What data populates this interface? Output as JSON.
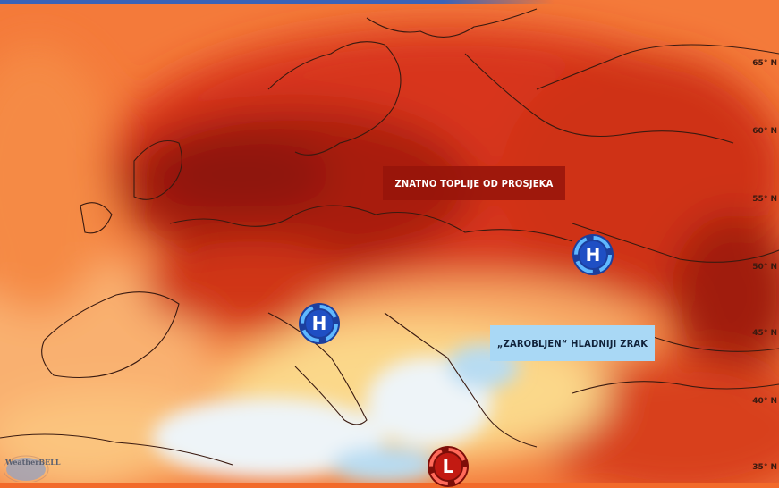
{
  "map": {
    "labels": {
      "warm": "ZNATNO TOPLIJE OD PROSJEKA",
      "cold": "„ZAROBLJEN“ HLADNIJI ZRAK"
    },
    "pressure_systems": [
      {
        "type": "high",
        "letter": "H",
        "color": "#1f4fc4"
      },
      {
        "type": "high",
        "letter": "H",
        "color": "#1f4fc4"
      },
      {
        "type": "low",
        "letter": "L",
        "color": "#c21a12"
      }
    ],
    "latitudes": [
      "65° N",
      "60° N",
      "55° N",
      "50° N",
      "45° N",
      "40° N",
      "35° N"
    ],
    "watermark": "WeatherBELL",
    "colors": {
      "hot": "#8e1408",
      "warm": "#e8441a",
      "mild": "#f8a060",
      "neutral": "#fbe08a",
      "cool": "#e9f1f8",
      "cold": "#a9d8f5"
    }
  }
}
